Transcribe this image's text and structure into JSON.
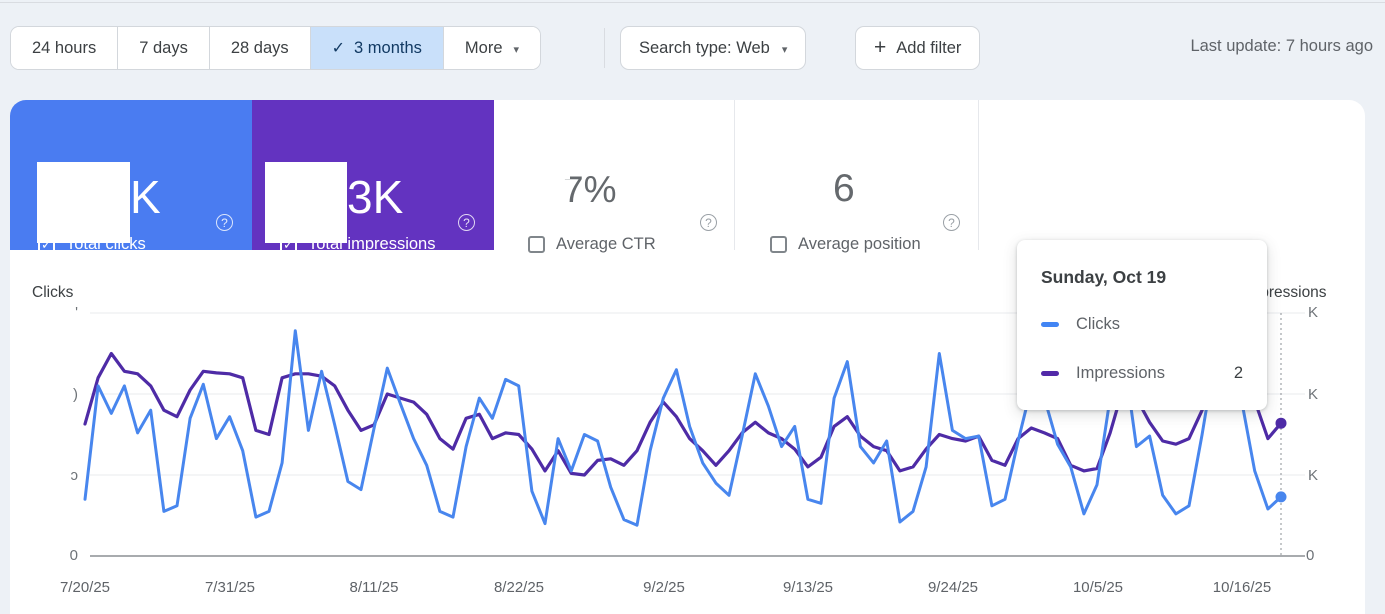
{
  "toolbar": {
    "date_ranges": [
      {
        "label": "24 hours",
        "selected": false
      },
      {
        "label": "7 days",
        "selected": false
      },
      {
        "label": "28 days",
        "selected": false
      },
      {
        "label": "3 months",
        "selected": true
      },
      {
        "label": "More",
        "selected": false,
        "has_caret": true
      }
    ],
    "check_glyph": "✓",
    "caret_glyph": "▾",
    "search_type_label": "Search type: Web",
    "add_filter_label": "Add filter",
    "plus_glyph": "+",
    "last_update": "Last update: 7 hours ago"
  },
  "metric_cards": [
    {
      "label": "Total clicks",
      "checked": true,
      "value_visible": "K",
      "value_redacted": true,
      "color": "#4a7cf1"
    },
    {
      "label": "Total impressions",
      "checked": true,
      "value_visible": "3K",
      "value_redacted": true,
      "color": "#6333c0"
    },
    {
      "label": "Average CTR",
      "checked": false,
      "value_visible": "7%",
      "value_redacted": true,
      "color": "#ffffff"
    },
    {
      "label": "Average position",
      "checked": false,
      "value_visible": "6",
      "value_redacted": true,
      "color": "#ffffff"
    }
  ],
  "help_glyph": "?",
  "tooltip": {
    "title": "Sunday, Oct 19",
    "rows": [
      {
        "label": "Clicks",
        "value": "",
        "color": "#4285f4"
      },
      {
        "label": "Impressions",
        "value": "2",
        "color": "#5229a8"
      }
    ]
  },
  "chart_data": {
    "type": "line",
    "x_daily_from": "7/20/25",
    "x_daily_to": "10/19/25",
    "x_tick_labels": [
      "7/20/25",
      "7/31/25",
      "8/11/25",
      "8/22/25",
      "9/2/25",
      "9/13/25",
      "9/24/25",
      "10/5/25",
      "10/16/25"
    ],
    "left_axis": {
      "title": "Clicks",
      "tick_labels": [
        "",
        "",
        "",
        "0"
      ],
      "tick_label_remnants": [
        "'",
        ")",
        "ɔ"
      ],
      "zero_label": "0"
    },
    "right_axis": {
      "title": "Impressions",
      "tick_labels": [
        "K",
        "K",
        "K",
        "0"
      ],
      "zero_label": "0"
    },
    "grid": true,
    "legend_position": "tooltip",
    "note": "Numeric axis values and totals are whited-out (redacted) in the screenshot; series values are in relative gridline units (0-3) read from line positions.",
    "hover": {
      "date": "Sunday, Oct 19",
      "x_label": "10/19/25",
      "clicks_rel": 0.73,
      "impressions_rel": 1.64
    },
    "series": [
      {
        "name": "Clicks",
        "color": "#4886ee",
        "values_rel": [
          0.7,
          2.1,
          1.76,
          2.1,
          1.52,
          1.8,
          0.55,
          0.62,
          1.7,
          2.12,
          1.45,
          1.72,
          1.3,
          0.48,
          0.55,
          1.15,
          2.78,
          1.55,
          2.28,
          1.62,
          0.92,
          0.82,
          1.58,
          2.32,
          1.88,
          1.45,
          1.12,
          0.55,
          0.48,
          1.35,
          1.95,
          1.7,
          2.18,
          2.1,
          0.8,
          0.4,
          1.45,
          1.05,
          1.5,
          1.42,
          0.85,
          0.45,
          0.38,
          1.3,
          1.95,
          2.3,
          1.6,
          1.15,
          0.9,
          0.75,
          1.48,
          2.25,
          1.85,
          1.35,
          1.6,
          0.7,
          0.65,
          1.95,
          2.4,
          1.35,
          1.15,
          1.42,
          0.42,
          0.55,
          1.1,
          2.5,
          1.55,
          1.45,
          1.48,
          0.62,
          0.7,
          1.42,
          2.08,
          1.95,
          1.38,
          1.1,
          0.52,
          0.88,
          1.95,
          2.52,
          1.35,
          1.48,
          0.75,
          0.52,
          0.62,
          1.5,
          2.48,
          1.9,
          1.92,
          1.05,
          0.58,
          0.73
        ]
      },
      {
        "name": "Impressions",
        "color": "#4e2ba6",
        "values_rel": [
          1.63,
          2.2,
          2.5,
          2.28,
          2.25,
          2.1,
          1.8,
          1.72,
          2.05,
          2.28,
          2.26,
          2.25,
          2.2,
          1.55,
          1.5,
          2.2,
          2.25,
          2.25,
          2.22,
          2.1,
          1.8,
          1.55,
          1.62,
          2.0,
          1.95,
          1.9,
          1.75,
          1.45,
          1.32,
          1.7,
          1.75,
          1.45,
          1.52,
          1.5,
          1.32,
          1.05,
          1.3,
          1.02,
          1.0,
          1.18,
          1.2,
          1.12,
          1.3,
          1.65,
          1.9,
          1.72,
          1.45,
          1.3,
          1.12,
          1.3,
          1.52,
          1.65,
          1.52,
          1.45,
          1.32,
          1.1,
          1.22,
          1.6,
          1.72,
          1.48,
          1.35,
          1.3,
          1.05,
          1.1,
          1.32,
          1.5,
          1.45,
          1.42,
          1.48,
          1.18,
          1.12,
          1.45,
          1.58,
          1.52,
          1.45,
          1.12,
          1.05,
          1.08,
          1.52,
          2.08,
          1.95,
          1.65,
          1.42,
          1.38,
          1.45,
          1.8,
          2.22,
          2.2,
          2.15,
          1.92,
          1.45,
          1.64
        ]
      }
    ]
  }
}
